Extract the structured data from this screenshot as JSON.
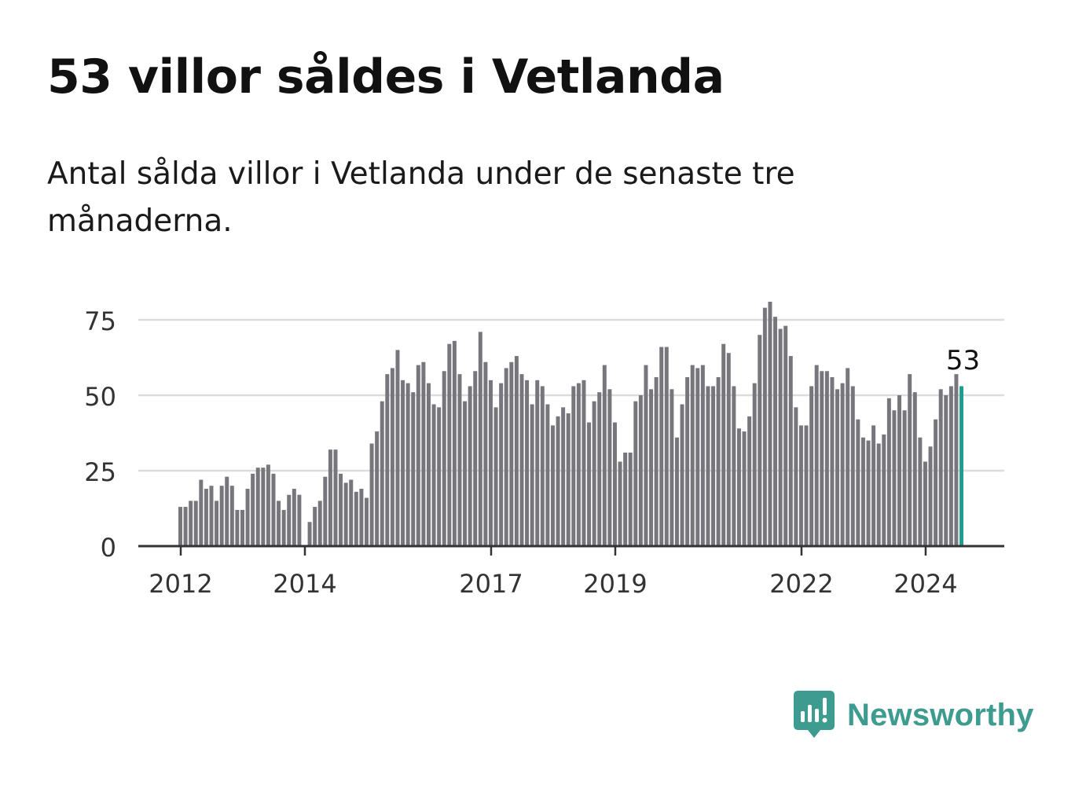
{
  "header": {
    "title": "53 villor såldes i Vetlanda",
    "subtitle": "Antal sålda villor i Vetlanda under de senaste tre månaderna."
  },
  "brand": {
    "name": "Newsworthy",
    "icon": "newsworthy-logo-icon",
    "color": "#3e9b8f"
  },
  "chart_data": {
    "type": "bar",
    "title": "",
    "xlabel": "",
    "ylabel": "",
    "ylim": [
      0,
      85
    ],
    "yticks": [
      0,
      25,
      50,
      75
    ],
    "grid": true,
    "bar_color": "#76767c",
    "highlight_color": "#1f9e8f",
    "x_start": "2012-01",
    "x_tick_labels": [
      "2012",
      "2014",
      "2017",
      "2019",
      "2022",
      "2024"
    ],
    "highlight_label": "53",
    "values": [
      13,
      13,
      15,
      15,
      22,
      19,
      20,
      15,
      20,
      23,
      20,
      12,
      12,
      19,
      24,
      26,
      26,
      27,
      24,
      15,
      12,
      17,
      19,
      17,
      0,
      8,
      13,
      15,
      23,
      32,
      32,
      24,
      21,
      22,
      18,
      19,
      16,
      34,
      38,
      48,
      57,
      59,
      65,
      55,
      54,
      51,
      60,
      61,
      54,
      47,
      46,
      58,
      67,
      68,
      57,
      48,
      53,
      58,
      71,
      61,
      55,
      46,
      54,
      59,
      61,
      63,
      57,
      55,
      47,
      55,
      53,
      47,
      40,
      43,
      46,
      44,
      53,
      54,
      55,
      41,
      48,
      51,
      60,
      52,
      41,
      28,
      31,
      31,
      48,
      50,
      60,
      52,
      56,
      66,
      66,
      52,
      36,
      47,
      56,
      60,
      59,
      60,
      53,
      53,
      56,
      67,
      64,
      53,
      39,
      38,
      43,
      54,
      70,
      79,
      81,
      76,
      72,
      73,
      63,
      46,
      40,
      40,
      53,
      60,
      58,
      58,
      56,
      52,
      54,
      59,
      53,
      42,
      36,
      35,
      40,
      34,
      37,
      49,
      45,
      50,
      45,
      57,
      51,
      36,
      28,
      33,
      42,
      52,
      50,
      53,
      57,
      53
    ]
  }
}
